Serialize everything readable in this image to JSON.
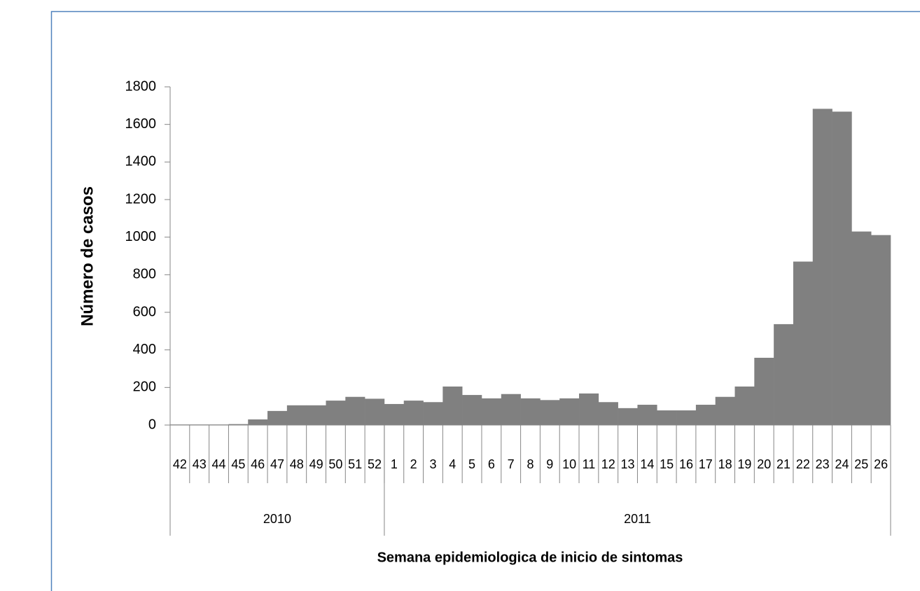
{
  "chart_data": {
    "type": "bar",
    "y_label": "Número de casos",
    "x_label": "Semana epidemiologica  de inicio de sintomas",
    "categories": [
      "42",
      "43",
      "44",
      "45",
      "46",
      "47",
      "48",
      "49",
      "50",
      "51",
      "52",
      "1",
      "2",
      "3",
      "4",
      "5",
      "6",
      "7",
      "8",
      "9",
      "10",
      "11",
      "12",
      "13",
      "14",
      "15",
      "16",
      "17",
      "18",
      "19",
      "20",
      "21",
      "22",
      "23",
      "24",
      "25",
      "26"
    ],
    "x_groups": [
      {
        "label": "2010",
        "size": 11
      },
      {
        "label": "2011",
        "size": 26
      }
    ],
    "values": [
      3,
      3,
      3,
      5,
      30,
      75,
      105,
      105,
      130,
      150,
      140,
      112,
      130,
      122,
      205,
      160,
      142,
      165,
      142,
      133,
      142,
      168,
      122,
      90,
      108,
      78,
      78,
      108,
      150,
      205,
      358,
      537,
      870,
      1683,
      1668,
      1030,
      1011
    ],
    "color": "#808080",
    "ylim": [
      0,
      1800
    ],
    "yticks": [
      0,
      200,
      400,
      600,
      800,
      1000,
      1200,
      1400,
      1600,
      1800
    ]
  }
}
